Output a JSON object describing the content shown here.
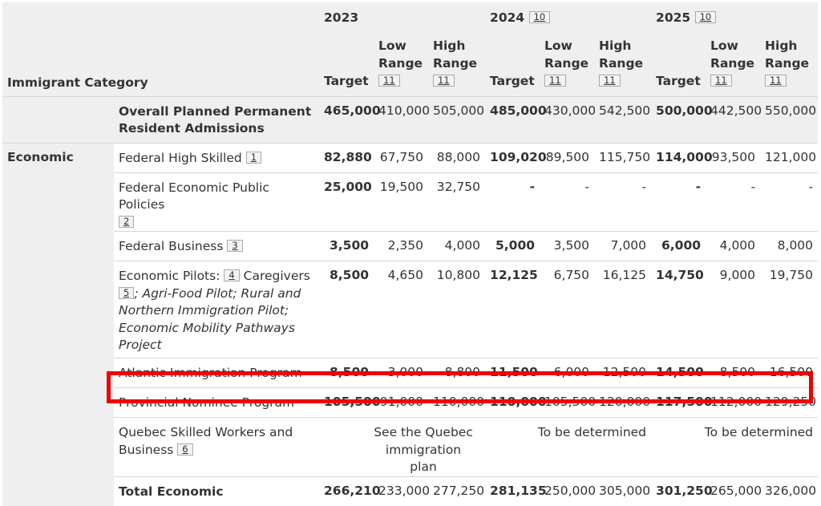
{
  "headers": {
    "category": "Immigrant Category",
    "years": [
      {
        "label": "2023",
        "footnote": ""
      },
      {
        "label": "2024",
        "footnote": "10"
      },
      {
        "label": "2025",
        "footnote": "10"
      }
    ],
    "target": "Target",
    "low_range_lines": [
      "Low",
      "Range"
    ],
    "high_range_lines": [
      "High",
      "Range"
    ],
    "range_footnote": "11"
  },
  "overall": {
    "label": "Overall Planned Permanent Resident Admissions",
    "values": [
      "465,000",
      "410,000",
      "505,000",
      "485,000",
      "430,000",
      "542,500",
      "500,000",
      "442,500",
      "550,000"
    ]
  },
  "category_name": "Economic",
  "rows": {
    "fhs": {
      "label": "Federal High Skilled",
      "footnote": "1",
      "values": [
        "82,880",
        "67,750",
        "88,000",
        "109,020",
        "89,500",
        "115,750",
        "114,000",
        "93,500",
        "121,000"
      ]
    },
    "fepp": {
      "label": "Federal Economic Public Policies",
      "footnote": "2",
      "values": [
        "25,000",
        "19,500",
        "32,750",
        "-",
        "-",
        "-",
        "-",
        "-",
        "-"
      ]
    },
    "fb": {
      "label": "Federal Business",
      "footnote": "3",
      "values": [
        "3,500",
        "2,350",
        "4,000",
        "5,000",
        "3,500",
        "7,000",
        "6,000",
        "4,000",
        "8,000"
      ]
    },
    "ep": {
      "label_prefix": "Economic Pilots:",
      "footnote": "4",
      "label_caregivers": "Caregivers",
      "footnote2": "5",
      "label_italic": "; Agri-Food Pilot; Rural and Northern Immigration Pilot; Economic Mobility Pathways Project",
      "values": [
        "8,500",
        "4,650",
        "10,800",
        "12,125",
        "6,750",
        "16,125",
        "14,750",
        "9,000",
        "19,750"
      ]
    },
    "aip": {
      "label": "Atlantic Immigration Program",
      "values": [
        "8,500",
        "3,000",
        "8,800",
        "11,500",
        "6,000",
        "12,500",
        "14,500",
        "8,500",
        "16,500"
      ]
    },
    "pnp": {
      "label": "Provincial Nominee Program",
      "values": [
        "105,500",
        "91,000",
        "110,000",
        "110,000",
        "105,500",
        "120,000",
        "117,500",
        "112,000",
        "129,250"
      ]
    },
    "qsw": {
      "label": "Quebec Skilled Workers and Business",
      "footnote": "6",
      "span_2023": "See the Quebec immigration plan",
      "span_2024": "To be determined",
      "span_2025": "To be determined"
    },
    "total": {
      "label": "Total Economic",
      "values": [
        "266,210",
        "233,000",
        "277,250",
        "281,135",
        "250,000",
        "305,000",
        "301,250",
        "265,000",
        "326,000"
      ]
    }
  },
  "highlight_color": "#ee0000"
}
